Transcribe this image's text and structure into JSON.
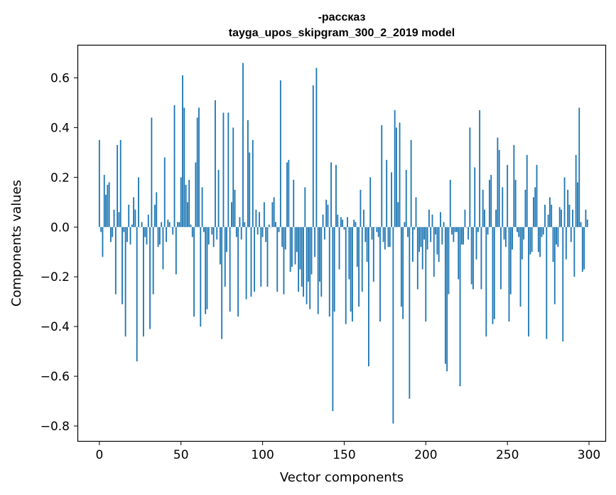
{
  "chart_data": {
    "type": "bar",
    "title": "-рассказ",
    "subtitle": "tayga_upos_skipgram_300_2_2019 model",
    "xlabel": "Vector components",
    "ylabel": "Components values",
    "xlim": [
      -13,
      310
    ],
    "ylim": [
      -0.86,
      0.73
    ],
    "x_ticks": [
      {
        "value": 0,
        "label": "0"
      },
      {
        "value": 50,
        "label": "50"
      },
      {
        "value": 100,
        "label": "100"
      },
      {
        "value": 150,
        "label": "150"
      },
      {
        "value": 200,
        "label": "200"
      },
      {
        "value": 250,
        "label": "250"
      },
      {
        "value": 300,
        "label": "300"
      }
    ],
    "y_ticks": [
      {
        "value": 0.6,
        "label": "0.6"
      },
      {
        "value": 0.4,
        "label": "0.4"
      },
      {
        "value": 0.2,
        "label": "0.2"
      },
      {
        "value": 0.0,
        "label": "0.0"
      },
      {
        "value": -0.2,
        "label": "−0.2"
      },
      {
        "value": -0.4,
        "label": "−0.4"
      },
      {
        "value": -0.6,
        "label": "−0.6"
      },
      {
        "value": -0.8,
        "label": "−0.8"
      }
    ],
    "bar_color": "#1f77b4",
    "series": [
      {
        "name": "components",
        "values": [
          0.35,
          -0.02,
          -0.12,
          0.21,
          0.13,
          0.17,
          0.18,
          -0.06,
          -0.04,
          0.07,
          -0.27,
          0.33,
          0.06,
          0.35,
          -0.31,
          -0.02,
          -0.44,
          -0.06,
          0.09,
          -0.07,
          0.01,
          0.12,
          0.07,
          -0.54,
          0.2,
          0.0,
          0.02,
          -0.44,
          -0.04,
          -0.07,
          0.05,
          -0.41,
          0.44,
          -0.27,
          0.09,
          0.14,
          -0.08,
          -0.07,
          0.02,
          -0.17,
          0.28,
          -0.06,
          0.03,
          0.02,
          0.0,
          -0.03,
          0.49,
          -0.19,
          0.02,
          0.02,
          0.2,
          0.61,
          0.48,
          0.17,
          0.1,
          0.19,
          0.01,
          -0.04,
          -0.36,
          0.26,
          0.44,
          0.48,
          -0.4,
          0.16,
          -0.02,
          -0.35,
          -0.33,
          -0.07,
          0.0,
          -0.03,
          -0.08,
          0.51,
          -0.05,
          0.23,
          -0.15,
          -0.45,
          0.46,
          -0.24,
          -0.1,
          0.46,
          -0.34,
          0.1,
          0.4,
          0.15,
          -0.04,
          -0.36,
          0.04,
          -0.05,
          0.66,
          0.02,
          -0.29,
          0.43,
          0.3,
          -0.28,
          0.35,
          -0.26,
          0.07,
          -0.03,
          0.06,
          -0.24,
          -0.04,
          0.1,
          -0.06,
          -0.24,
          0.01,
          0.0,
          0.1,
          0.12,
          0.02,
          -0.26,
          -0.02,
          0.59,
          -0.08,
          -0.27,
          -0.09,
          0.26,
          0.27,
          -0.18,
          -0.16,
          0.19,
          -0.15,
          -0.1,
          -0.26,
          -0.17,
          -0.24,
          -0.28,
          0.16,
          -0.31,
          -0.22,
          -0.33,
          -0.19,
          0.57,
          -0.12,
          0.64,
          -0.35,
          -0.22,
          -0.28,
          0.05,
          -0.05,
          0.11,
          0.09,
          -0.36,
          0.26,
          -0.74,
          -0.34,
          0.25,
          0.05,
          -0.17,
          0.04,
          0.03,
          -0.01,
          -0.39,
          0.04,
          -0.21,
          -0.34,
          -0.38,
          0.03,
          0.02,
          -0.16,
          -0.32,
          0.15,
          -0.26,
          0.07,
          -0.06,
          -0.14,
          -0.56,
          0.2,
          -0.05,
          -0.22,
          0.0,
          -0.02,
          -0.04,
          -0.38,
          0.41,
          -0.06,
          -0.09,
          0.27,
          -0.08,
          -0.08,
          0.22,
          -0.79,
          0.47,
          0.4,
          0.1,
          0.42,
          -0.32,
          -0.37,
          0.02,
          0.23,
          -0.04,
          -0.69,
          0.35,
          -0.14,
          -0.01,
          0.12,
          -0.25,
          -0.1,
          -0.08,
          -0.17,
          -0.05,
          -0.38,
          -0.09,
          0.07,
          -0.06,
          0.05,
          -0.2,
          -0.03,
          -0.11,
          -0.14,
          0.06,
          -0.07,
          0.02,
          -0.55,
          -0.58,
          -0.27,
          0.19,
          -0.03,
          -0.06,
          -0.02,
          -0.02,
          -0.21,
          -0.64,
          -0.07,
          -0.07,
          0.07,
          0.0,
          -0.05,
          0.4,
          -0.23,
          -0.25,
          0.24,
          -0.13,
          -0.02,
          0.47,
          -0.25,
          0.15,
          0.07,
          -0.44,
          -0.03,
          0.19,
          0.21,
          -0.39,
          -0.37,
          0.07,
          0.36,
          0.31,
          -0.25,
          0.16,
          -0.05,
          -0.08,
          0.25,
          -0.38,
          -0.27,
          -0.09,
          0.33,
          0.19,
          -0.02,
          -0.04,
          -0.32,
          -0.13,
          -0.05,
          0.15,
          0.29,
          -0.44,
          -0.11,
          -0.1,
          0.12,
          0.16,
          0.25,
          -0.1,
          -0.12,
          -0.04,
          -0.03,
          0.09,
          -0.45,
          0.05,
          0.12,
          0.09,
          -0.14,
          -0.31,
          -0.07,
          -0.08,
          0.08,
          0.07,
          -0.46,
          0.2,
          -0.13,
          0.15,
          0.09,
          -0.06,
          0.07,
          -0.2,
          0.29,
          0.18,
          0.48,
          0.02,
          -0.18,
          -0.17,
          0.07,
          0.03
        ]
      }
    ]
  }
}
